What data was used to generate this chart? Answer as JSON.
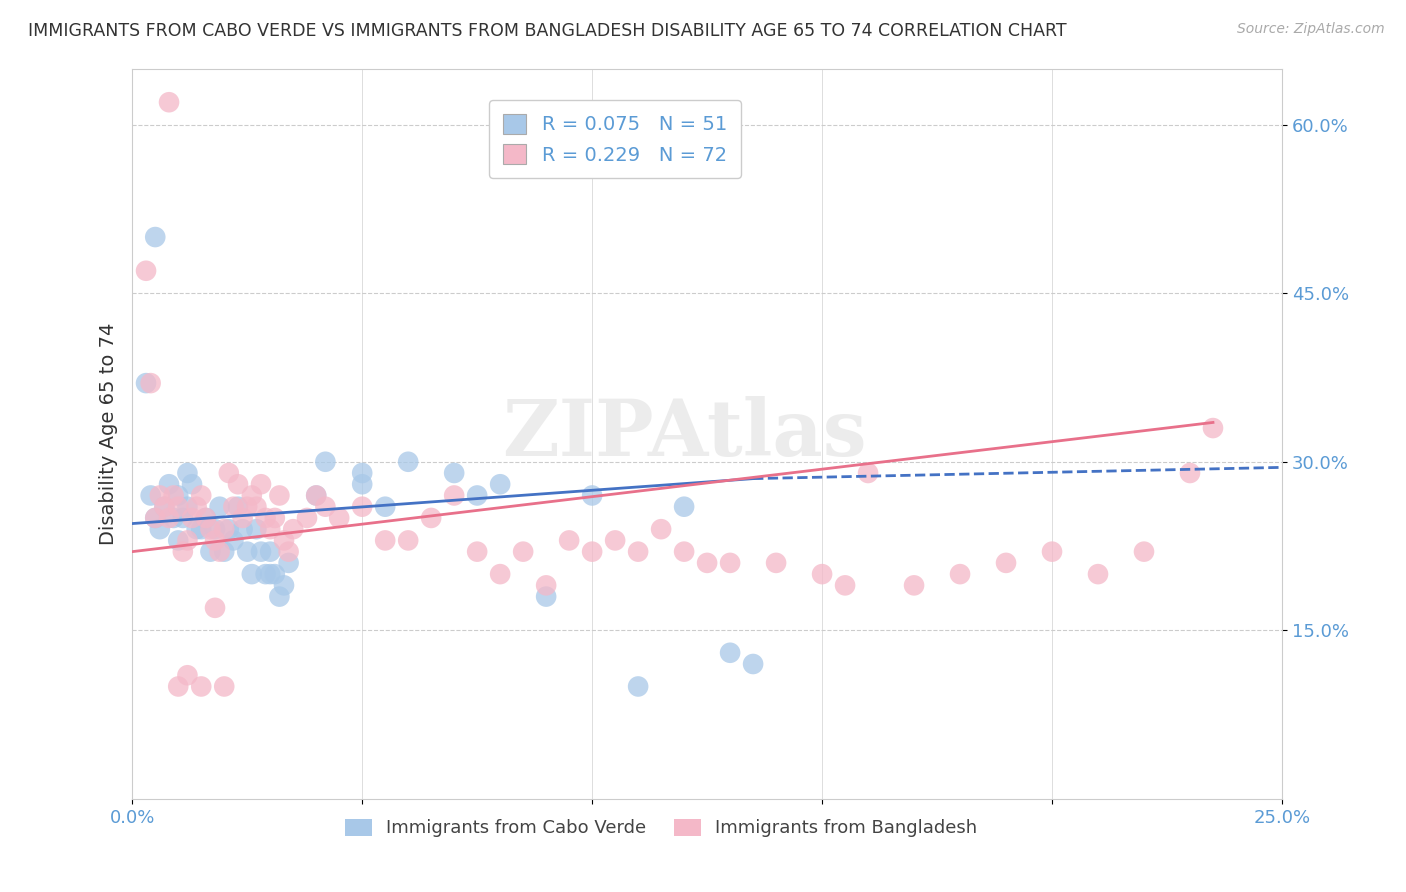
{
  "title": "IMMIGRANTS FROM CABO VERDE VS IMMIGRANTS FROM BANGLADESH DISABILITY AGE 65 TO 74 CORRELATION CHART",
  "source": "Source: ZipAtlas.com",
  "ylabel": "Disability Age 65 to 74",
  "xmin": 0.0,
  "xmax": 0.25,
  "ymin": 0.0,
  "ymax": 0.65,
  "yticks": [
    0.15,
    0.3,
    0.45,
    0.6
  ],
  "ytick_labels": [
    "15.0%",
    "30.0%",
    "45.0%",
    "60.0%"
  ],
  "cabo_verde_color": "#a8c8e8",
  "bangladesh_color": "#f4b8c8",
  "cabo_verde_line_color": "#4472c4",
  "bangladesh_line_color": "#e8708a",
  "cabo_verde_R": 0.075,
  "cabo_verde_N": 51,
  "bangladesh_R": 0.229,
  "bangladesh_N": 72,
  "legend_label_1": "Immigrants from Cabo Verde",
  "legend_label_2": "Immigrants from Bangladesh",
  "cabo_verde_x": [
    0.003,
    0.004,
    0.005,
    0.006,
    0.007,
    0.008,
    0.009,
    0.01,
    0.01,
    0.011,
    0.012,
    0.012,
    0.013,
    0.014,
    0.015,
    0.016,
    0.017,
    0.018,
    0.019,
    0.02,
    0.021,
    0.022,
    0.023,
    0.024,
    0.025,
    0.026,
    0.027,
    0.028,
    0.029,
    0.03,
    0.03,
    0.031,
    0.032,
    0.033,
    0.034,
    0.04,
    0.042,
    0.05,
    0.06,
    0.07,
    0.075,
    0.08,
    0.09,
    0.1,
    0.11,
    0.12,
    0.13,
    0.135,
    0.05,
    0.055,
    0.005
  ],
  "cabo_verde_y": [
    0.37,
    0.27,
    0.25,
    0.24,
    0.26,
    0.28,
    0.25,
    0.27,
    0.23,
    0.25,
    0.26,
    0.29,
    0.28,
    0.24,
    0.24,
    0.25,
    0.22,
    0.24,
    0.26,
    0.22,
    0.24,
    0.23,
    0.26,
    0.24,
    0.22,
    0.2,
    0.24,
    0.22,
    0.2,
    0.22,
    0.2,
    0.2,
    0.18,
    0.19,
    0.21,
    0.27,
    0.3,
    0.28,
    0.3,
    0.29,
    0.27,
    0.28,
    0.18,
    0.27,
    0.1,
    0.26,
    0.13,
    0.12,
    0.29,
    0.26,
    0.5
  ],
  "bangladesh_x": [
    0.003,
    0.004,
    0.005,
    0.006,
    0.007,
    0.008,
    0.009,
    0.01,
    0.011,
    0.012,
    0.013,
    0.014,
    0.015,
    0.016,
    0.017,
    0.018,
    0.019,
    0.02,
    0.021,
    0.022,
    0.023,
    0.024,
    0.025,
    0.026,
    0.027,
    0.028,
    0.029,
    0.03,
    0.031,
    0.032,
    0.033,
    0.034,
    0.035,
    0.038,
    0.04,
    0.042,
    0.045,
    0.05,
    0.055,
    0.06,
    0.065,
    0.07,
    0.075,
    0.08,
    0.085,
    0.09,
    0.095,
    0.1,
    0.105,
    0.11,
    0.115,
    0.12,
    0.125,
    0.13,
    0.14,
    0.15,
    0.155,
    0.16,
    0.17,
    0.18,
    0.19,
    0.2,
    0.21,
    0.22,
    0.23,
    0.235,
    0.008,
    0.01,
    0.012,
    0.015,
    0.018,
    0.02
  ],
  "bangladesh_y": [
    0.47,
    0.37,
    0.25,
    0.27,
    0.26,
    0.25,
    0.27,
    0.26,
    0.22,
    0.23,
    0.25,
    0.26,
    0.27,
    0.25,
    0.24,
    0.23,
    0.22,
    0.24,
    0.29,
    0.26,
    0.28,
    0.25,
    0.26,
    0.27,
    0.26,
    0.28,
    0.25,
    0.24,
    0.25,
    0.27,
    0.23,
    0.22,
    0.24,
    0.25,
    0.27,
    0.26,
    0.25,
    0.26,
    0.23,
    0.23,
    0.25,
    0.27,
    0.22,
    0.2,
    0.22,
    0.19,
    0.23,
    0.22,
    0.23,
    0.22,
    0.24,
    0.22,
    0.21,
    0.21,
    0.21,
    0.2,
    0.19,
    0.29,
    0.19,
    0.2,
    0.21,
    0.22,
    0.2,
    0.22,
    0.29,
    0.33,
    0.62,
    0.1,
    0.11,
    0.1,
    0.17,
    0.1
  ]
}
